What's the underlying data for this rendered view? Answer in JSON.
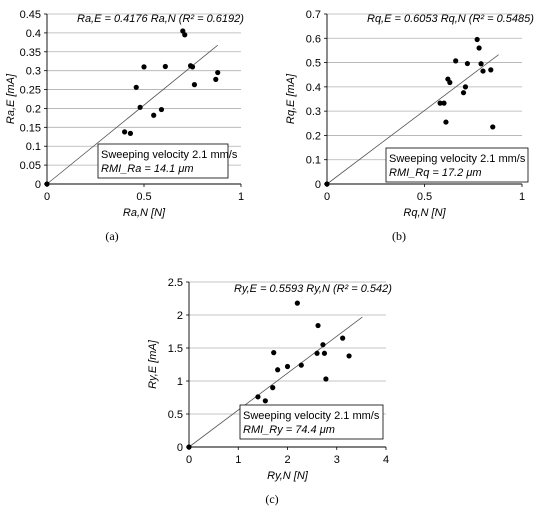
{
  "chart_data": [
    {
      "type": "scatter",
      "panel": "(a)",
      "equation": "Ra,E = 0.4176 Ra,N (R² = 0.6192)",
      "xlabel": "Ra,N [N]",
      "ylabel": "Ra,E [mA]",
      "xlim": [
        0,
        1
      ],
      "ylim": [
        0,
        0.45
      ],
      "xticks": [
        "0",
        "0.5",
        "1"
      ],
      "yticks": [
        "0",
        "0.05",
        "0.1",
        "0.15",
        "0.2",
        "0.25",
        "0.3",
        "0.35",
        "0.4",
        "0.45"
      ],
      "grid": "horizontal",
      "box_lines": [
        "Sweeping velocity 2.1 mm/s",
        "RMI_Ra = 14.1 μm"
      ],
      "fit_slope": 0.4176,
      "points": [
        {
          "x": 0.4,
          "y": 0.138
        },
        {
          "x": 0.43,
          "y": 0.134
        },
        {
          "x": 0.46,
          "y": 0.256
        },
        {
          "x": 0.48,
          "y": 0.203
        },
        {
          "x": 0.5,
          "y": 0.31
        },
        {
          "x": 0.55,
          "y": 0.182
        },
        {
          "x": 0.59,
          "y": 0.197
        },
        {
          "x": 0.61,
          "y": 0.311
        },
        {
          "x": 0.7,
          "y": 0.405
        },
        {
          "x": 0.71,
          "y": 0.395
        },
        {
          "x": 0.74,
          "y": 0.313
        },
        {
          "x": 0.75,
          "y": 0.31
        },
        {
          "x": 0.76,
          "y": 0.263
        },
        {
          "x": 0.87,
          "y": 0.277
        },
        {
          "x": 0.88,
          "y": 0.295
        }
      ]
    },
    {
      "type": "scatter",
      "panel": "(b)",
      "equation": "Rq,E = 0.6053 Rq,N (R² = 0.5485)",
      "xlabel": "Rq,N [N]",
      "ylabel": "Rq,E [mA]",
      "xlim": [
        0,
        1
      ],
      "ylim": [
        0,
        0.7
      ],
      "xticks": [
        "0",
        "0.5",
        "1"
      ],
      "yticks": [
        "0",
        "0.1",
        "0.2",
        "0.3",
        "0.4",
        "0.5",
        "0.6",
        "0.7"
      ],
      "grid": "horizontal",
      "box_lines": [
        "Sweeping velocity 2.1 mm/s",
        "RMI_Rq = 17.2 μm"
      ],
      "fit_slope": 0.6053,
      "points": [
        {
          "x": 0.58,
          "y": 0.333
        },
        {
          "x": 0.6,
          "y": 0.333
        },
        {
          "x": 0.61,
          "y": 0.255
        },
        {
          "x": 0.62,
          "y": 0.432
        },
        {
          "x": 0.63,
          "y": 0.418
        },
        {
          "x": 0.66,
          "y": 0.507
        },
        {
          "x": 0.7,
          "y": 0.376
        },
        {
          "x": 0.71,
          "y": 0.4
        },
        {
          "x": 0.72,
          "y": 0.496
        },
        {
          "x": 0.77,
          "y": 0.595
        },
        {
          "x": 0.78,
          "y": 0.56
        },
        {
          "x": 0.79,
          "y": 0.495
        },
        {
          "x": 0.8,
          "y": 0.465
        },
        {
          "x": 0.84,
          "y": 0.47
        },
        {
          "x": 0.85,
          "y": 0.235
        }
      ]
    },
    {
      "type": "scatter",
      "panel": "(c)",
      "equation": "Ry,E = 0.5593 Ry,N (R² = 0.542)",
      "xlabel": "Ry,N [N]",
      "ylabel": "Ry,E [mA]",
      "xlim": [
        0,
        4
      ],
      "ylim": [
        0,
        2.5
      ],
      "xticks": [
        "0",
        "1",
        "2",
        "3",
        "4"
      ],
      "yticks": [
        "0",
        "0.5",
        "1",
        "1.5",
        "2",
        "2.5"
      ],
      "grid": "horizontal",
      "box_lines": [
        "Sweeping velocity 2.1 mm/s",
        "RMI_Ry = 74.4 μm"
      ],
      "fit_slope": 0.5593,
      "points": [
        {
          "x": 1.4,
          "y": 0.76
        },
        {
          "x": 1.55,
          "y": 0.7
        },
        {
          "x": 1.7,
          "y": 0.9
        },
        {
          "x": 1.72,
          "y": 1.43
        },
        {
          "x": 1.8,
          "y": 1.17
        },
        {
          "x": 2.0,
          "y": 1.22
        },
        {
          "x": 2.2,
          "y": 2.18
        },
        {
          "x": 2.28,
          "y": 1.24
        },
        {
          "x": 2.6,
          "y": 1.42
        },
        {
          "x": 2.62,
          "y": 1.84
        },
        {
          "x": 2.72,
          "y": 1.55
        },
        {
          "x": 2.75,
          "y": 1.42
        },
        {
          "x": 2.78,
          "y": 1.03
        },
        {
          "x": 3.12,
          "y": 1.65
        },
        {
          "x": 3.25,
          "y": 1.38
        }
      ]
    }
  ]
}
